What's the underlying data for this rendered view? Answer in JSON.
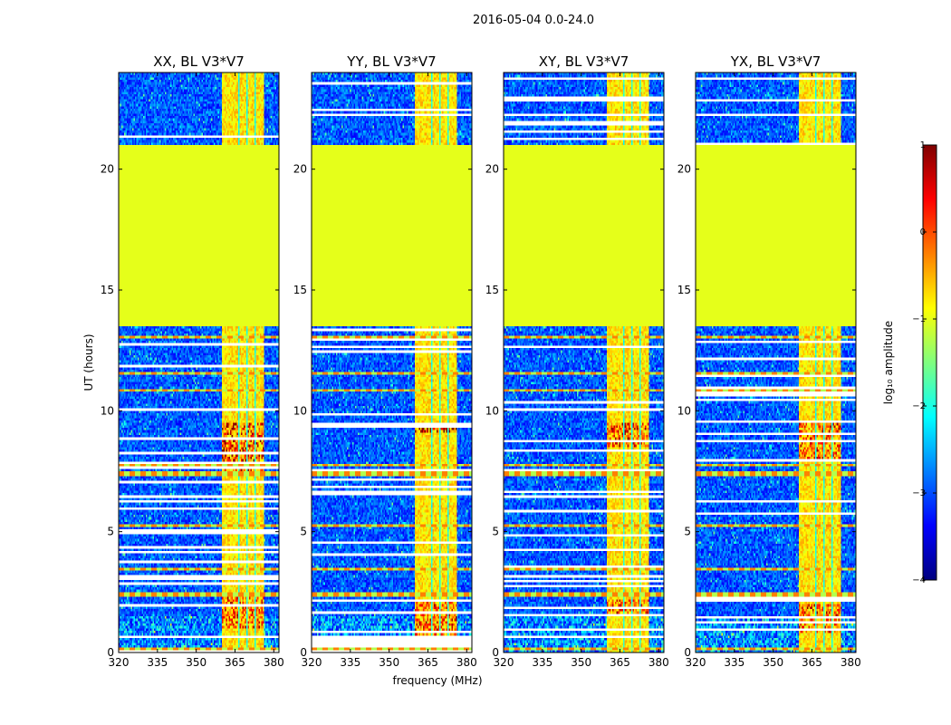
{
  "figure": {
    "suptitle": "2016-05-04 0.0-24.0",
    "xlabel": "frequency (MHz)",
    "ylabel": "UT (hours)"
  },
  "colorbar": {
    "label": "log₁₀ amplitude",
    "range": [
      -4,
      1
    ],
    "ticks": [
      1,
      0,
      -1,
      -2,
      -3,
      -4
    ],
    "tick_labels": [
      "1",
      "0",
      "−1",
      "−2",
      "−3",
      "−4"
    ],
    "colormap": "jet",
    "colors": [
      "#00007f",
      "#0000ff",
      "#007fff",
      "#00ffff",
      "#7fff7f",
      "#ffff00",
      "#ff7f00",
      "#ff0000",
      "#7f0000"
    ]
  },
  "chart_data": [
    {
      "type": "heatmap",
      "title": "XX, BL V3*V7",
      "xlim": [
        320,
        382
      ],
      "ylim": [
        0,
        24
      ],
      "xticks": [
        320,
        335,
        350,
        365,
        380
      ],
      "xtick_labels": [
        "320",
        "335",
        "350",
        "365",
        "380"
      ],
      "yticks": [
        0,
        5,
        10,
        15,
        20
      ],
      "ytick_labels": [
        "0",
        "5",
        "10",
        "15",
        "20"
      ],
      "flagged_time_ranges_hours": [
        [
          13.5,
          21.0
        ]
      ],
      "rfi_band_mhz": [
        360,
        376
      ],
      "rfi_hotspots": [
        {
          "t0": 7.5,
          "t1": 9.5,
          "level": 0.4
        },
        {
          "t0": 1.0,
          "t1": 2.5,
          "level": 0.3
        }
      ]
    },
    {
      "type": "heatmap",
      "title": "YY, BL V3*V7",
      "xlim": [
        320,
        382
      ],
      "ylim": [
        0,
        24
      ],
      "xticks": [
        320,
        335,
        350,
        365,
        380
      ],
      "xtick_labels": [
        "320",
        "335",
        "350",
        "365",
        "380"
      ],
      "yticks": [
        0,
        5,
        10,
        15,
        20
      ],
      "ytick_labels": [
        "0",
        "5",
        "10",
        "15",
        "20"
      ],
      "flagged_time_ranges_hours": [
        [
          13.5,
          21.0
        ]
      ],
      "rfi_band_mhz": [
        360,
        376
      ],
      "rfi_hotspots": [
        {
          "t0": 9.1,
          "t1": 9.5,
          "level": 0.7
        },
        {
          "t0": 0.5,
          "t1": 2.2,
          "level": 0.3
        }
      ]
    },
    {
      "type": "heatmap",
      "title": "XY, BL V3*V7",
      "xlim": [
        320,
        382
      ],
      "ylim": [
        0,
        24
      ],
      "xticks": [
        320,
        335,
        350,
        365,
        380
      ],
      "xtick_labels": [
        "320",
        "335",
        "350",
        "365",
        "380"
      ],
      "yticks": [
        0,
        5,
        10,
        15,
        20
      ],
      "ytick_labels": [
        "0",
        "5",
        "10",
        "15",
        "20"
      ],
      "flagged_time_ranges_hours": [
        [
          13.5,
          21.0
        ]
      ],
      "rfi_band_mhz": [
        360,
        376
      ],
      "rfi_hotspots": [
        {
          "t0": 8.5,
          "t1": 9.5,
          "level": 0.35
        },
        {
          "t0": 1.5,
          "t1": 2.2,
          "level": 0.3
        }
      ]
    },
    {
      "type": "heatmap",
      "title": "YX, BL V3*V7",
      "xlim": [
        320,
        382
      ],
      "ylim": [
        0,
        24
      ],
      "xticks": [
        320,
        335,
        350,
        365,
        380
      ],
      "xtick_labels": [
        "320",
        "335",
        "350",
        "365",
        "380"
      ],
      "yticks": [
        0,
        5,
        10,
        15,
        20
      ],
      "ytick_labels": [
        "0",
        "5",
        "10",
        "15",
        "20"
      ],
      "flagged_time_ranges_hours": [
        [
          13.5,
          21.0
        ]
      ],
      "rfi_band_mhz": [
        360,
        376
      ],
      "rfi_hotspots": [
        {
          "t0": 8.0,
          "t1": 9.5,
          "level": 0.3
        },
        {
          "t0": 0.8,
          "t1": 2.0,
          "level": 0.3
        }
      ]
    }
  ]
}
